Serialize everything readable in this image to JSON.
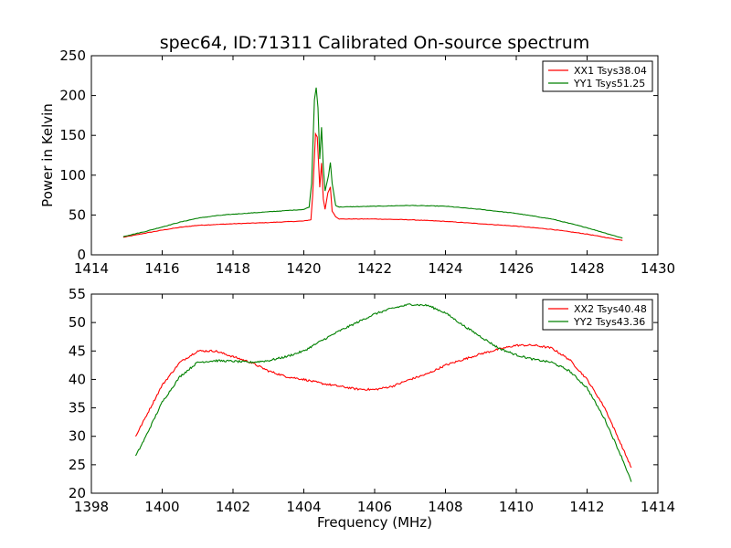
{
  "colors": {
    "xx": "#ff0000",
    "yy": "#008000"
  },
  "chart_data": [
    {
      "type": "line",
      "title": "spec64, ID:71311 Calibrated On-source spectrum",
      "xlabel": "",
      "ylabel": "Power in Kelvin",
      "xlim": [
        1414,
        1430
      ],
      "ylim": [
        0,
        250
      ],
      "xticks": [
        "1414",
        "1416",
        "1418",
        "1420",
        "1422",
        "1424",
        "1426",
        "1428",
        "1430"
      ],
      "yticks": [
        "0",
        "50",
        "100",
        "150",
        "200",
        "250"
      ],
      "legend_position": "top-right",
      "series": [
        {
          "name": "XX1 Tsys38.04",
          "color": "#ff0000",
          "points": [
            [
              1414.9,
              22
            ],
            [
              1415.5,
              27
            ],
            [
              1416,
              31
            ],
            [
              1416.5,
              34.5
            ],
            [
              1417,
              37
            ],
            [
              1417.5,
              38
            ],
            [
              1418,
              39
            ],
            [
              1419,
              40.5
            ],
            [
              1420,
              42.5
            ],
            [
              1420.2,
              44
            ],
            [
              1420.25,
              75
            ],
            [
              1420.33,
              152
            ],
            [
              1420.38,
              148
            ],
            [
              1420.45,
              85
            ],
            [
              1420.5,
              115
            ],
            [
              1420.55,
              70
            ],
            [
              1420.6,
              57
            ],
            [
              1420.68,
              78
            ],
            [
              1420.75,
              85
            ],
            [
              1420.8,
              55
            ],
            [
              1420.9,
              48
            ],
            [
              1421,
              45
            ],
            [
              1422,
              45
            ],
            [
              1423,
              44
            ],
            [
              1424,
              42
            ],
            [
              1425,
              39
            ],
            [
              1426,
              36
            ],
            [
              1427,
              32
            ],
            [
              1428,
              26
            ],
            [
              1429,
              18
            ]
          ]
        },
        {
          "name": "YY1 Tsys51.25",
          "color": "#008000",
          "points": [
            [
              1414.9,
              23
            ],
            [
              1415.5,
              29
            ],
            [
              1416,
              35
            ],
            [
              1416.5,
              41
            ],
            [
              1417,
              46
            ],
            [
              1417.5,
              49
            ],
            [
              1418,
              51
            ],
            [
              1419,
              54
            ],
            [
              1420,
              57
            ],
            [
              1420.15,
              60
            ],
            [
              1420.22,
              90
            ],
            [
              1420.3,
              195
            ],
            [
              1420.35,
              210
            ],
            [
              1420.4,
              185
            ],
            [
              1420.45,
              120
            ],
            [
              1420.5,
              160
            ],
            [
              1420.55,
              110
            ],
            [
              1420.6,
              80
            ],
            [
              1420.65,
              90
            ],
            [
              1420.7,
              100
            ],
            [
              1420.75,
              116
            ],
            [
              1420.8,
              90
            ],
            [
              1420.9,
              62
            ],
            [
              1421,
              60
            ],
            [
              1422,
              61
            ],
            [
              1423,
              62
            ],
            [
              1424,
              61
            ],
            [
              1425,
              57
            ],
            [
              1426,
              52
            ],
            [
              1427,
              45
            ],
            [
              1428,
              34
            ],
            [
              1429,
              21
            ]
          ]
        }
      ]
    },
    {
      "type": "line",
      "title": "",
      "xlabel": "Frequency (MHz)",
      "ylabel": "",
      "xlim": [
        1398,
        1414
      ],
      "ylim": [
        20,
        55
      ],
      "xticks": [
        "1398",
        "1400",
        "1402",
        "1404",
        "1406",
        "1408",
        "1410",
        "1412",
        "1414"
      ],
      "yticks": [
        "20",
        "25",
        "30",
        "35",
        "40",
        "45",
        "50",
        "55"
      ],
      "legend_position": "top-right",
      "series": [
        {
          "name": "XX2 Tsys40.48",
          "color": "#ff0000",
          "points": [
            [
              1399.25,
              30
            ],
            [
              1399.5,
              33
            ],
            [
              1400,
              39
            ],
            [
              1400.5,
              43
            ],
            [
              1401,
              45
            ],
            [
              1401.5,
              45
            ],
            [
              1402,
              44
            ],
            [
              1402.5,
              43
            ],
            [
              1403,
              41.5
            ],
            [
              1403.5,
              40.5
            ],
            [
              1404,
              40
            ],
            [
              1404.5,
              39.3
            ],
            [
              1405,
              38.8
            ],
            [
              1405.5,
              38.3
            ],
            [
              1406,
              38.2
            ],
            [
              1406.5,
              38.8
            ],
            [
              1407,
              40
            ],
            [
              1407.5,
              41
            ],
            [
              1408,
              42.5
            ],
            [
              1408.5,
              43.5
            ],
            [
              1409,
              44.5
            ],
            [
              1409.5,
              45.3
            ],
            [
              1410,
              46
            ],
            [
              1410.5,
              46
            ],
            [
              1411,
              45.5
            ],
            [
              1411.5,
              43.5
            ],
            [
              1412,
              40
            ],
            [
              1412.5,
              35
            ],
            [
              1413,
              28
            ],
            [
              1413.25,
              24.5
            ]
          ]
        },
        {
          "name": "YY2 Tsys43.36",
          "color": "#008000",
          "points": [
            [
              1399.25,
              26.5
            ],
            [
              1399.5,
              29.5
            ],
            [
              1400,
              36
            ],
            [
              1400.5,
              40.5
            ],
            [
              1401,
              43
            ],
            [
              1401.5,
              43.3
            ],
            [
              1402,
              43.2
            ],
            [
              1402.5,
              43
            ],
            [
              1403,
              43.3
            ],
            [
              1403.5,
              44
            ],
            [
              1404,
              45
            ],
            [
              1404.5,
              46.8
            ],
            [
              1405,
              48.5
            ],
            [
              1405.5,
              50
            ],
            [
              1406,
              51.5
            ],
            [
              1406.5,
              52.5
            ],
            [
              1407,
              53.2
            ],
            [
              1407.5,
              53
            ],
            [
              1408,
              51.7
            ],
            [
              1408.5,
              49.5
            ],
            [
              1409,
              47.5
            ],
            [
              1409.5,
              45.5
            ],
            [
              1410,
              44.3
            ],
            [
              1410.5,
              43.5
            ],
            [
              1411,
              43
            ],
            [
              1411.5,
              41.5
            ],
            [
              1412,
              38.5
            ],
            [
              1412.5,
              33
            ],
            [
              1413,
              26
            ],
            [
              1413.25,
              22
            ]
          ]
        }
      ]
    }
  ]
}
